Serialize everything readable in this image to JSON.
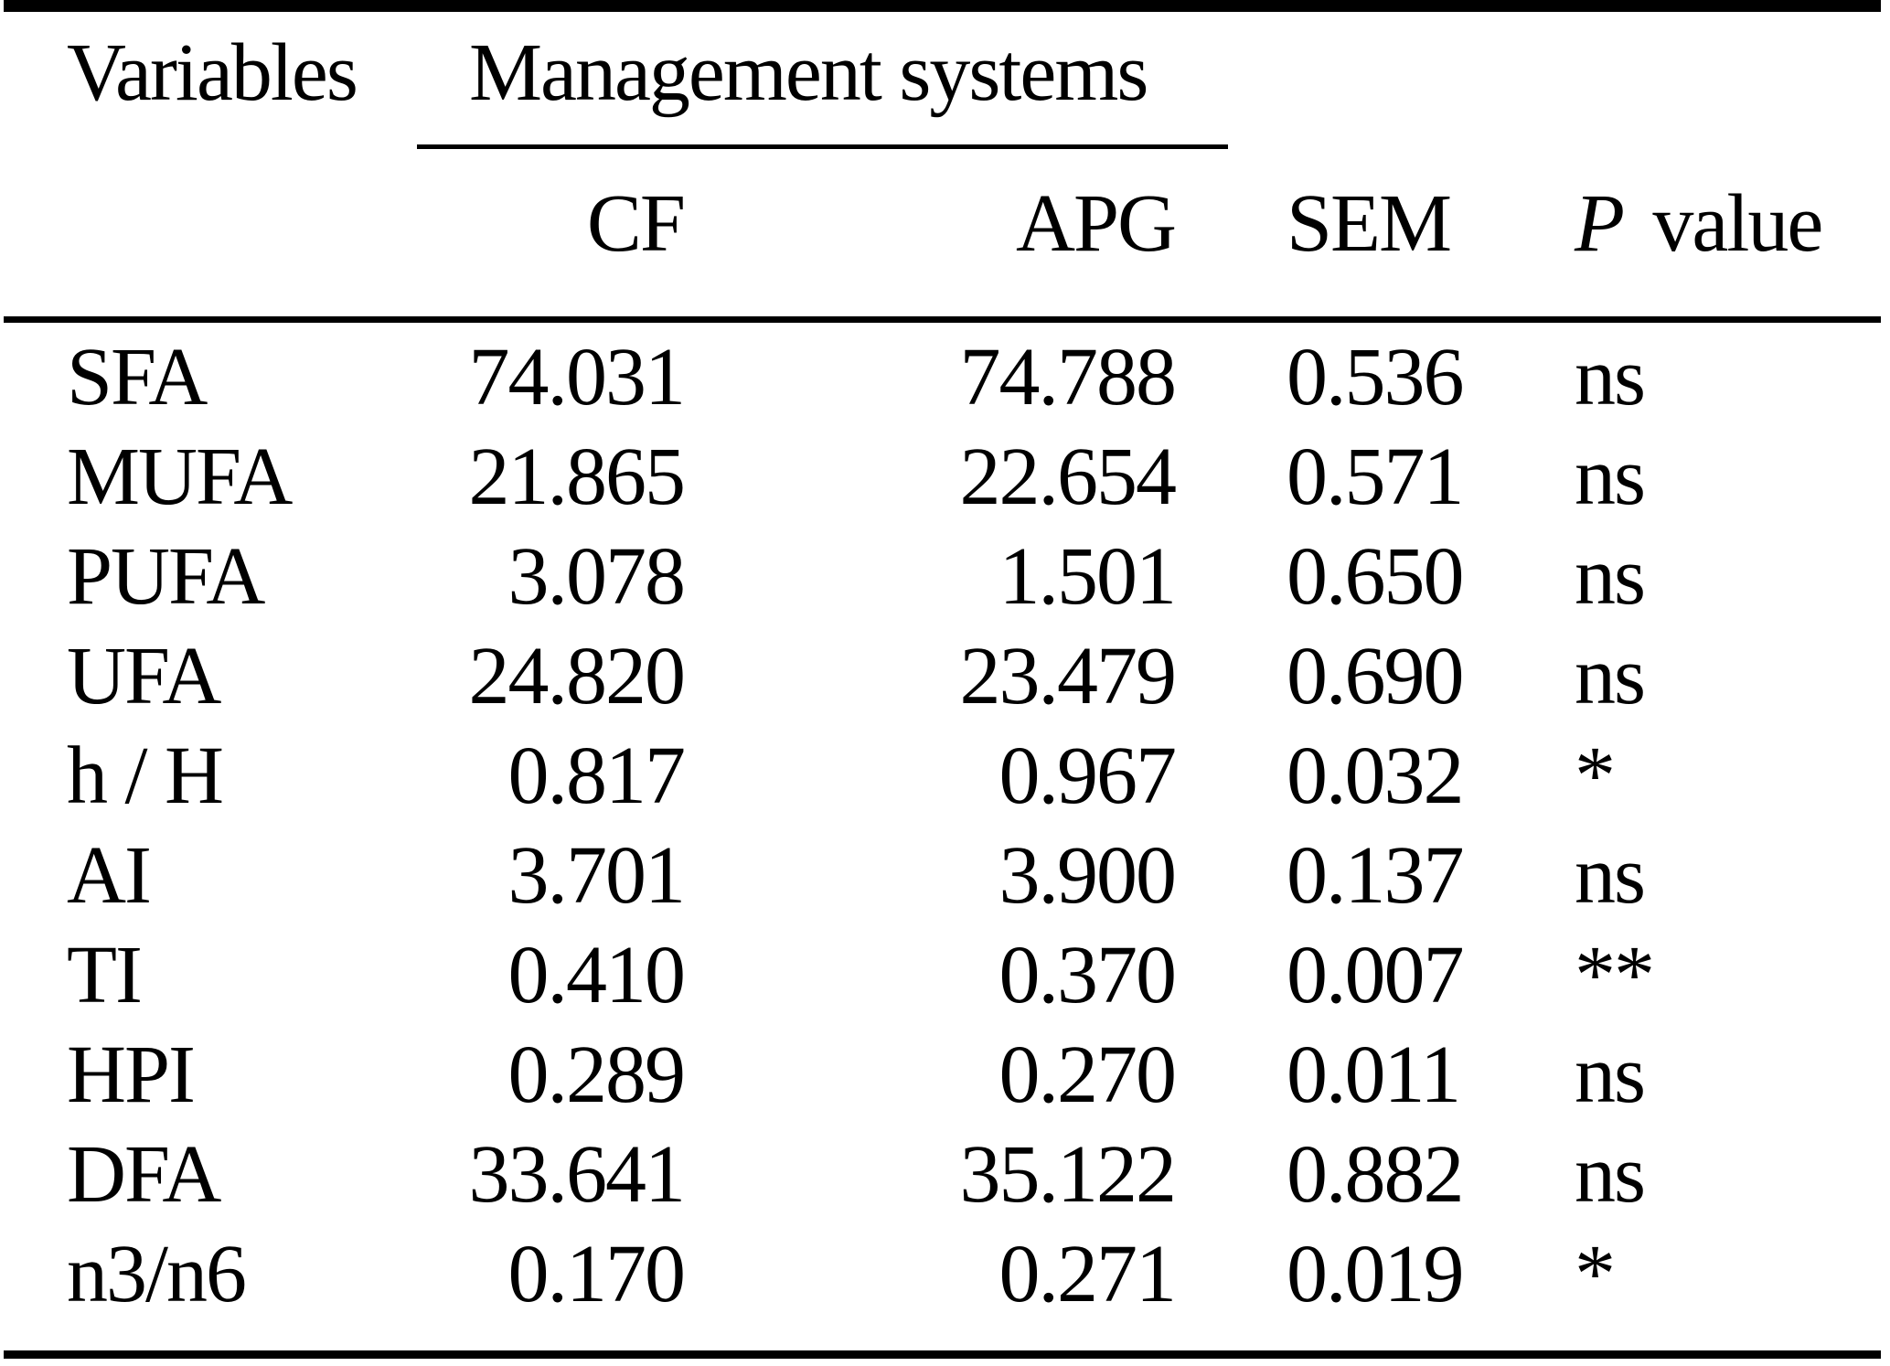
{
  "colors": {
    "text": "#000000",
    "background": "#ffffff"
  },
  "table": {
    "header": {
      "variables": "Variables",
      "management_systems": "Management systems",
      "cf": "CF",
      "apg": "APG",
      "sem": "SEM",
      "p": "P",
      "p_value_rest": "value"
    },
    "rows": [
      {
        "variable": "SFA",
        "cf": "74.031",
        "apg": "74.788",
        "sem": "0.536",
        "p": "ns"
      },
      {
        "variable": "MUFA",
        "cf": "21.865",
        "apg": "22.654",
        "sem": "0.571",
        "p": "ns"
      },
      {
        "variable": "PUFA",
        "cf": "3.078",
        "apg": "1.501",
        "sem": "0.650",
        "p": "ns"
      },
      {
        "variable": "UFA",
        "cf": "24.820",
        "apg": "23.479",
        "sem": "0.690",
        "p": "ns"
      },
      {
        "variable": "h / H",
        "cf": "0.817",
        "apg": "0.967",
        "sem": "0.032",
        "p": "*"
      },
      {
        "variable": "AI",
        "cf": "3.701",
        "apg": "3.900",
        "sem": "0.137",
        "p": "ns"
      },
      {
        "variable": "TI",
        "cf": "0.410",
        "apg": "0.370",
        "sem": "0.007",
        "p": "**"
      },
      {
        "variable": "HPI",
        "cf": "0.289",
        "apg": "0.270",
        "sem": "0.011",
        "p": "ns"
      },
      {
        "variable": "DFA",
        "cf": "33.641",
        "apg": "35.122",
        "sem": "0.882",
        "p": "ns"
      },
      {
        "variable": "n3/n6",
        "cf": "0.170",
        "apg": "0.271",
        "sem": "0.019",
        "p": "*"
      }
    ]
  }
}
